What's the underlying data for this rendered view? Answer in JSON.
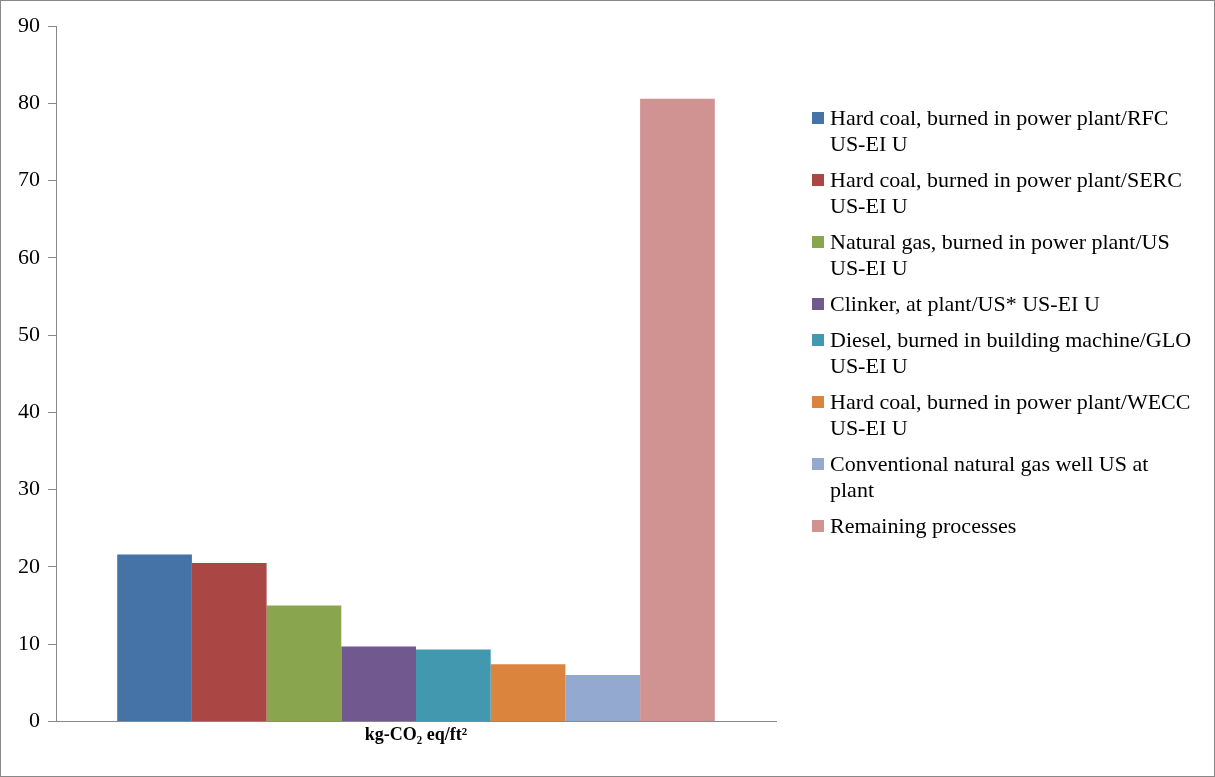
{
  "chart_data": {
    "type": "bar",
    "categories": [
      "kg-CO₂ eq/ft²"
    ],
    "ylim": [
      0,
      90
    ],
    "yticks": [
      0,
      10,
      20,
      30,
      40,
      50,
      60,
      70,
      80,
      90
    ],
    "grid": false,
    "legend": "right",
    "series": [
      {
        "name": "Hard coal, burned in power plant/RFC US-EI U",
        "color": "#4572a7",
        "values": [
          21.6
        ]
      },
      {
        "name": "Hard coal, burned in power plant/SERC US-EI U",
        "color": "#aa4643",
        "values": [
          20.5
        ]
      },
      {
        "name": "Natural gas, burned in power plant/US US-EI U",
        "color": "#89a54e",
        "values": [
          15.0
        ]
      },
      {
        "name": "Clinker, at plant/US* US-EI U",
        "color": "#71588f",
        "values": [
          9.7
        ]
      },
      {
        "name": "Diesel, burned in building machine/GLO US-EI U",
        "color": "#4198af",
        "values": [
          9.3
        ]
      },
      {
        "name": "Hard coal, burned in power plant/WECC US-EI U",
        "color": "#db843d",
        "values": [
          7.4
        ]
      },
      {
        "name": "Conventional natural gas well US at plant",
        "color": "#93a9cf",
        "values": [
          6.0
        ]
      },
      {
        "name": "Remaining processes",
        "color": "#d19392",
        "values": [
          80.6
        ]
      }
    ]
  }
}
